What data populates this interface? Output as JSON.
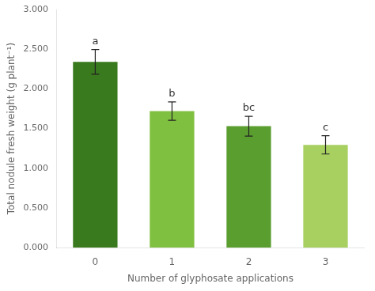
{
  "chart_data": {
    "type": "bar",
    "categories": [
      "0",
      "1",
      "2",
      "3"
    ],
    "values": [
      2.34,
      1.72,
      1.53,
      1.295
    ],
    "errors": [
      0.155,
      0.115,
      0.125,
      0.115
    ],
    "colors": [
      "#3a7a1e",
      "#80c040",
      "#5a9e30",
      "#a8d060"
    ],
    "annotations": [
      "a",
      "b",
      "bc",
      "c"
    ],
    "xlabel": "Number of glyphosate applications",
    "ylabel": "Total nodule fresh weight (g plant⁻¹)",
    "ylim": [
      0.0,
      3.0
    ],
    "yticks": [
      {
        "value": 0.0,
        "label": "0.000"
      },
      {
        "value": 0.5,
        "label": "0.500"
      },
      {
        "value": 1.0,
        "label": "1.000"
      },
      {
        "value": 1.5,
        "label": "1.500"
      },
      {
        "value": 2.0,
        "label": "2.000"
      },
      {
        "value": 2.5,
        "label": "2.500"
      },
      {
        "value": 3.0,
        "label": "3.000"
      }
    ],
    "grid": false
  }
}
